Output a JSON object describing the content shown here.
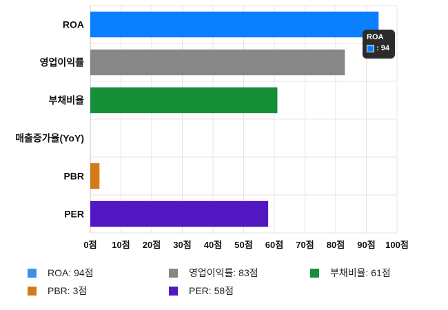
{
  "chart_data": {
    "type": "bar",
    "orientation": "horizontal",
    "categories": [
      "ROA",
      "영업이익률",
      "부채비율",
      "매출증가율(YoY)",
      "PBR",
      "PER"
    ],
    "values": [
      94,
      83,
      61,
      0,
      3,
      58
    ],
    "colors": [
      "#0a7fff",
      "#878787",
      "#168f38",
      "#888888",
      "#d47a1b",
      "#5317c2"
    ],
    "xlim": [
      0,
      100
    ],
    "xticks": [
      "0점",
      "10점",
      "20점",
      "30점",
      "40점",
      "50점",
      "60점",
      "70점",
      "80점",
      "90점",
      "100점"
    ],
    "grid": true,
    "legend": [
      {
        "label": "ROA: 94점",
        "color": "#3d8ef0"
      },
      {
        "label": "영업이익률: 83점",
        "color": "#878787"
      },
      {
        "label": "부채비율: 61점",
        "color": "#168f38"
      },
      {
        "label": "PBR: 3점",
        "color": "#d47a1b"
      },
      {
        "label": "PER: 58점",
        "color": "#5317c2"
      }
    ],
    "legend_position": "bottom",
    "tooltip": {
      "title": "ROA",
      "value": ": 94",
      "color": "#0a7fff"
    }
  }
}
